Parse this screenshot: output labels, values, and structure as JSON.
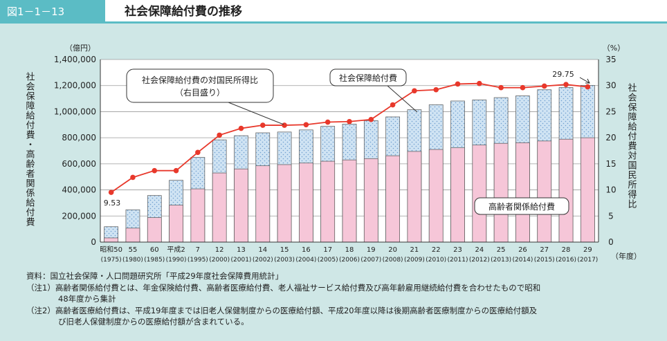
{
  "header": {
    "figure_number": "図1－1－13",
    "title": "社会保障給付費の推移"
  },
  "chart_data": {
    "type": "bar+line",
    "categories": [
      "昭和50",
      "55",
      "60",
      "平成2",
      "7",
      "12",
      "13",
      "14",
      "15",
      "16",
      "17",
      "18",
      "19",
      "20",
      "21",
      "22",
      "23",
      "24",
      "25",
      "26",
      "27",
      "28",
      "29"
    ],
    "years": [
      "(1975)",
      "(1980)",
      "(1985)",
      "(1990)",
      "(1995)",
      "(2000)",
      "(2001)",
      "(2002)",
      "(2003)",
      "(2004)",
      "(2005)",
      "(2006)",
      "(2007)",
      "(2008)",
      "(2009)",
      "(2010)",
      "(2011)",
      "(2012)",
      "(2013)",
      "(2014)",
      "(2015)",
      "(2016)",
      "(2017)"
    ],
    "series": [
      {
        "name": "社会保障給付費",
        "axis": "left",
        "values": [
          118000,
          248000,
          357000,
          474000,
          650000,
          784000,
          816000,
          838000,
          844000,
          860000,
          888000,
          905000,
          931000,
          960000,
          1015000,
          1053000,
          1082000,
          1090000,
          1108000,
          1121000,
          1168000,
          1185000,
          1202000
        ]
      },
      {
        "name": "高齢者関係給付費",
        "axis": "left",
        "values": [
          32000,
          107000,
          188000,
          283000,
          408000,
          530000,
          561000,
          585000,
          594000,
          606000,
          620000,
          630000,
          640000,
          662000,
          695000,
          710000,
          723000,
          744000,
          757000,
          762000,
          775000,
          789000,
          800000
        ]
      },
      {
        "name": "社会保障給付費の対国民所得比",
        "axis": "right",
        "values": [
          9.53,
          12.4,
          13.7,
          13.7,
          17.2,
          20.5,
          21.8,
          22.4,
          22.4,
          22.5,
          23.0,
          23.1,
          23.5,
          26.3,
          29.0,
          29.2,
          30.3,
          30.4,
          29.6,
          29.6,
          29.9,
          30.2,
          29.75
        ]
      }
    ],
    "left_axis": {
      "unit": "（億円）",
      "title": "社会保障給付費・高齢者関係給付費",
      "ylim": [
        0,
        1400000
      ],
      "ticks": [
        "0",
        "200,000",
        "400,000",
        "600,000",
        "800,000",
        "1,000,000",
        "1,200,000",
        "1,400,000"
      ]
    },
    "right_axis": {
      "unit": "（%）",
      "title": "社会保障給付費対国民所得比",
      "ylim": [
        0,
        35
      ],
      "ticks": [
        "0",
        "5",
        "10",
        "15",
        "20",
        "25",
        "30",
        "35"
      ]
    },
    "x_unit": "（年度）",
    "annotations": {
      "first_value": "9.53",
      "last_value": "29.75"
    },
    "callouts": {
      "ratio_line1": "社会保障給付費の対国民所得比",
      "ratio_line2": "（右目盛り）",
      "total": "社会保障給付費",
      "elderly": "高齢者関係給付費"
    },
    "colors": {
      "total": "#cfe3f3",
      "elderly": "#f6c6d8",
      "line": "#e8382b",
      "bg": "#cfe7e6"
    }
  },
  "notes": {
    "source": "資料：国立社会保障・人口問題研究所「平成29年度社会保障費用統計」",
    "note1_line1": "（注1）高齢者関係給付費とは、年金保険給付費、高齢者医療給付費、老人福祉サービス給付費及び高年齢雇用継続給付費を合わせたもので昭和",
    "note1_line2": "48年度から集計",
    "note2_line1": "（注2）高齢者医療給付費は、平成19年度までは旧老人保健制度からの医療給付額、平成20年度以降は後期高齢者医療制度からの医療給付額及",
    "note2_line2": "び旧老人保健制度からの医療給付額が含まれている。"
  }
}
